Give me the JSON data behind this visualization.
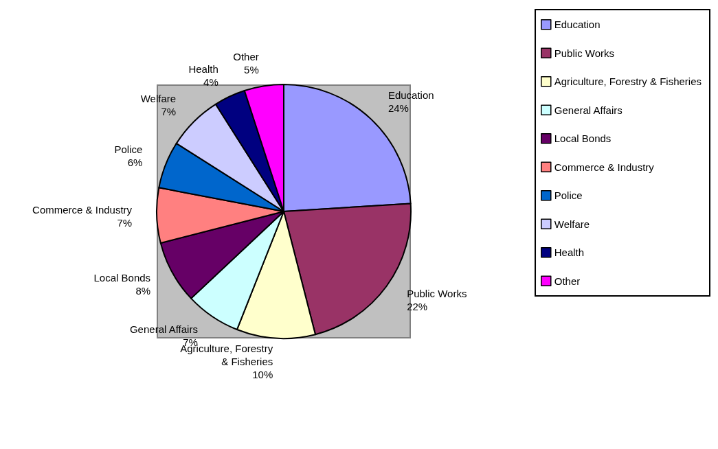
{
  "chart_data": {
    "type": "pie",
    "categories": [
      "Education",
      "Public Works",
      "Agriculture, Forestry & Fisheries",
      "General Affairs",
      "Local Bonds",
      "Commerce & Industry",
      "Police",
      "Welfare",
      "Health",
      "Other"
    ],
    "values": [
      24,
      22,
      10,
      7,
      8,
      7,
      6,
      7,
      4,
      5
    ],
    "value_labels": [
      "24%",
      "22%",
      "10%",
      "7%",
      "8%",
      "7%",
      "6%",
      "7%",
      "4%",
      "5%"
    ],
    "colors": [
      "#9999ff",
      "#993366",
      "#ffffcc",
      "#ccffff",
      "#660066",
      "#ff8080",
      "#0066cc",
      "#ccccff",
      "#000080",
      "#ff00ff"
    ],
    "legend": "right"
  }
}
